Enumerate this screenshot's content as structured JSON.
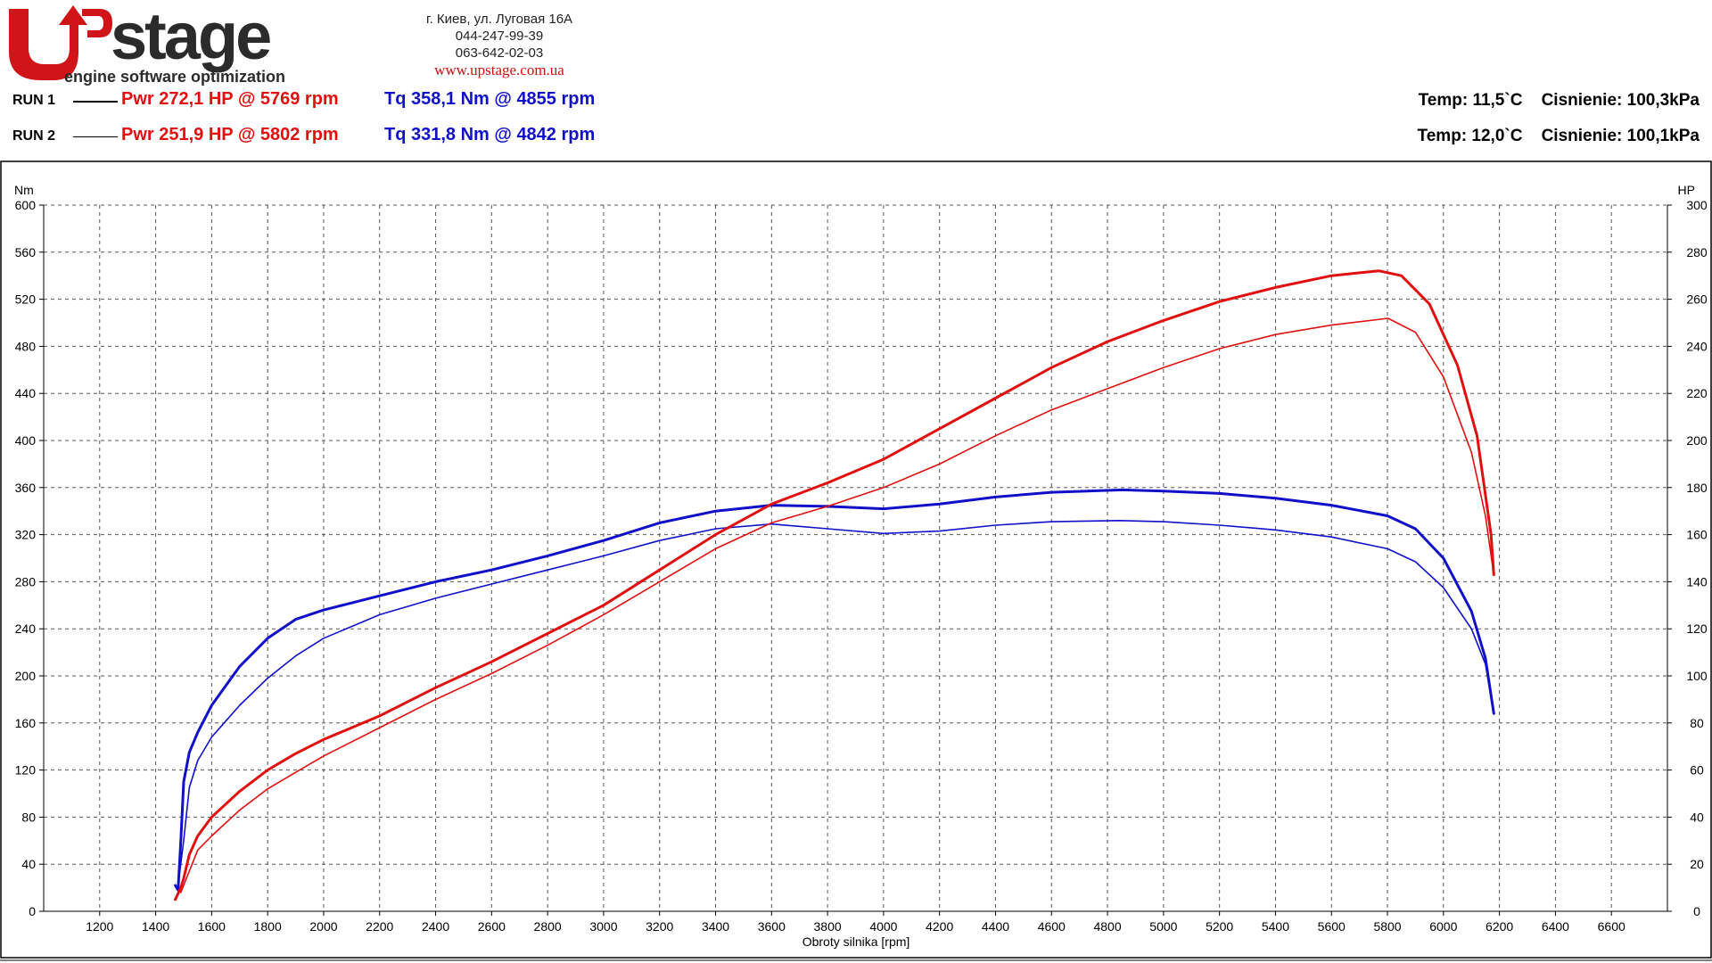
{
  "header": {
    "logo": {
      "brand": "Upstage",
      "tagline": "engine software optimization"
    },
    "address": "г. Киев, ул. Луговая 16А",
    "phone1": "044-247-99-39",
    "phone2": "063-642-02-03",
    "website": "www.upstage.com.ua"
  },
  "runs": [
    {
      "label": "RUN 1",
      "pwr": "Pwr  272,1 HP @ 5769 rpm",
      "tq": "Tq 358,1 Nm @ 4855 rpm",
      "temp": "Temp: 11,5`C",
      "pressure": "Cisnienie: 100,3kPa"
    },
    {
      "label": "RUN 2",
      "pwr": "Pwr  251,9 HP @ 5802 rpm",
      "tq": "Tq 331,8 Nm @ 4842 rpm",
      "temp": "Temp: 12,0`C",
      "pressure": "Cisnienie: 100,1kPa"
    }
  ],
  "colors": {
    "power": "#e01010",
    "torque": "#1010c8",
    "grid": "#555555"
  },
  "chart_data": {
    "type": "line",
    "xlabel": "Obroty silnika [rpm]",
    "ylabel_left": "Nm",
    "ylabel_right": "HP",
    "xlim": [
      1000,
      6800
    ],
    "ylim_left": [
      0,
      600
    ],
    "ylim_right": [
      0,
      300
    ],
    "x_ticks": [
      1200,
      1400,
      1600,
      1800,
      2000,
      2200,
      2400,
      2600,
      2800,
      3000,
      3200,
      3400,
      3600,
      3800,
      4000,
      4200,
      4400,
      4600,
      4800,
      5000,
      5200,
      5400,
      5600,
      5800,
      6000,
      6200,
      6400,
      6600
    ],
    "y_left_ticks": [
      0,
      40,
      80,
      120,
      160,
      200,
      240,
      280,
      320,
      360,
      400,
      440,
      480,
      520,
      560,
      600
    ],
    "y_right_ticks": [
      0,
      20,
      40,
      60,
      80,
      100,
      120,
      140,
      160,
      180,
      200,
      220,
      240,
      260,
      280,
      300
    ],
    "grid": true,
    "series": [
      {
        "name": "RUN 1",
        "kind": "torque",
        "axis": "left",
        "color": "#1010c8",
        "width": 3,
        "points": [
          [
            1470,
            22
          ],
          [
            1480,
            18
          ],
          [
            1490,
            60
          ],
          [
            1500,
            110
          ],
          [
            1520,
            135
          ],
          [
            1550,
            152
          ],
          [
            1600,
            175
          ],
          [
            1700,
            208
          ],
          [
            1800,
            232
          ],
          [
            1900,
            248
          ],
          [
            2000,
            256
          ],
          [
            2200,
            268
          ],
          [
            2400,
            280
          ],
          [
            2600,
            290
          ],
          [
            2800,
            302
          ],
          [
            3000,
            315
          ],
          [
            3200,
            330
          ],
          [
            3400,
            340
          ],
          [
            3600,
            345
          ],
          [
            3800,
            344
          ],
          [
            4000,
            342
          ],
          [
            4200,
            346
          ],
          [
            4400,
            352
          ],
          [
            4600,
            356
          ],
          [
            4855,
            358
          ],
          [
            5000,
            357
          ],
          [
            5200,
            355
          ],
          [
            5400,
            351
          ],
          [
            5600,
            345
          ],
          [
            5800,
            336
          ],
          [
            5900,
            325
          ],
          [
            6000,
            300
          ],
          [
            6100,
            255
          ],
          [
            6150,
            215
          ],
          [
            6180,
            168
          ]
        ]
      },
      {
        "name": "RUN 2",
        "kind": "torque",
        "axis": "left",
        "color": "#1010c8",
        "width": 1.6,
        "points": [
          [
            1480,
            22
          ],
          [
            1500,
            60
          ],
          [
            1520,
            105
          ],
          [
            1550,
            128
          ],
          [
            1600,
            148
          ],
          [
            1700,
            175
          ],
          [
            1800,
            198
          ],
          [
            1900,
            217
          ],
          [
            2000,
            232
          ],
          [
            2200,
            252
          ],
          [
            2400,
            266
          ],
          [
            2600,
            278
          ],
          [
            2800,
            290
          ],
          [
            3000,
            302
          ],
          [
            3200,
            315
          ],
          [
            3400,
            325
          ],
          [
            3600,
            329
          ],
          [
            3800,
            325
          ],
          [
            4000,
            321
          ],
          [
            4200,
            323
          ],
          [
            4400,
            328
          ],
          [
            4600,
            331
          ],
          [
            4842,
            332
          ],
          [
            5000,
            331
          ],
          [
            5200,
            328
          ],
          [
            5400,
            324
          ],
          [
            5600,
            318
          ],
          [
            5800,
            308
          ],
          [
            5900,
            297
          ],
          [
            6000,
            275
          ],
          [
            6100,
            240
          ],
          [
            6150,
            210
          ],
          [
            6180,
            168
          ]
        ]
      },
      {
        "name": "RUN 1",
        "kind": "power",
        "axis": "right",
        "color": "#e01010",
        "width": 3,
        "points": [
          [
            1470,
            5
          ],
          [
            1490,
            10
          ],
          [
            1500,
            14
          ],
          [
            1520,
            24
          ],
          [
            1550,
            32
          ],
          [
            1600,
            40
          ],
          [
            1700,
            51
          ],
          [
            1800,
            60
          ],
          [
            1900,
            67
          ],
          [
            2000,
            73
          ],
          [
            2200,
            83
          ],
          [
            2400,
            95
          ],
          [
            2600,
            106
          ],
          [
            2800,
            118
          ],
          [
            3000,
            130
          ],
          [
            3200,
            145
          ],
          [
            3400,
            160
          ],
          [
            3600,
            173
          ],
          [
            3800,
            182
          ],
          [
            4000,
            192
          ],
          [
            4200,
            205
          ],
          [
            4400,
            218
          ],
          [
            4600,
            231
          ],
          [
            4800,
            242
          ],
          [
            5000,
            251
          ],
          [
            5200,
            259
          ],
          [
            5400,
            265
          ],
          [
            5600,
            270
          ],
          [
            5769,
            272.1
          ],
          [
            5850,
            270
          ],
          [
            5950,
            258
          ],
          [
            6050,
            232
          ],
          [
            6120,
            202
          ],
          [
            6170,
            160
          ],
          [
            6180,
            143
          ]
        ]
      },
      {
        "name": "RUN 2",
        "kind": "power",
        "axis": "right",
        "color": "#e01010",
        "width": 1.6,
        "points": [
          [
            1490,
            8
          ],
          [
            1510,
            14
          ],
          [
            1530,
            20
          ],
          [
            1550,
            26
          ],
          [
            1600,
            32
          ],
          [
            1700,
            43
          ],
          [
            1800,
            52
          ],
          [
            1900,
            59
          ],
          [
            2000,
            66
          ],
          [
            2200,
            78
          ],
          [
            2400,
            90
          ],
          [
            2600,
            101
          ],
          [
            2800,
            113
          ],
          [
            3000,
            126
          ],
          [
            3200,
            140
          ],
          [
            3400,
            154
          ],
          [
            3600,
            165
          ],
          [
            3800,
            172
          ],
          [
            4000,
            180
          ],
          [
            4200,
            190
          ],
          [
            4400,
            202
          ],
          [
            4600,
            213
          ],
          [
            4800,
            222
          ],
          [
            5000,
            231
          ],
          [
            5200,
            239
          ],
          [
            5400,
            245
          ],
          [
            5600,
            249
          ],
          [
            5802,
            251.9
          ],
          [
            5900,
            246
          ],
          [
            6000,
            227
          ],
          [
            6100,
            195
          ],
          [
            6150,
            168
          ],
          [
            6180,
            143
          ]
        ]
      }
    ]
  }
}
